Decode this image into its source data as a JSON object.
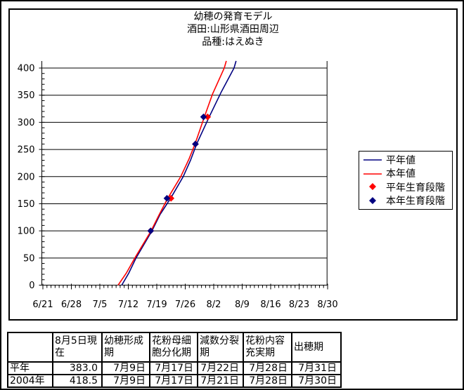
{
  "title": {
    "line1": "幼穂の発育モデル",
    "line2": "酒田:山形県酒田周辺",
    "line3": "品種:はえぬき"
  },
  "chart_data": {
    "type": "line",
    "title": "幼穂の発育モデル 酒田:山形県酒田周辺 品種:はえぬき",
    "x_axis": {
      "start_date": "6/21",
      "tick_labels": [
        "6/21",
        "6/28",
        "7/5",
        "7/12",
        "7/19",
        "7/26",
        "8/2",
        "8/9",
        "8/16",
        "8/23",
        "8/30"
      ],
      "major_tick_interval_days": 7,
      "minor_tick_interval_days": 1,
      "range_days": [
        0,
        70
      ]
    },
    "y_axis": {
      "min": 0,
      "max": 413,
      "major_interval": 50,
      "minor_interval": 10,
      "tick_labels": [
        "0",
        "50",
        "100",
        "150",
        "200",
        "250",
        "300",
        "350",
        "400"
      ]
    },
    "grid": "horizontal",
    "legend_position": "right",
    "series": [
      {
        "name": "平年値",
        "color": "#000080",
        "style": "line",
        "points": [
          [
            18.9,
            0
          ],
          [
            20.6,
            22
          ],
          [
            22.4,
            50
          ],
          [
            26.3,
            100
          ],
          [
            28.3,
            130
          ],
          [
            30.9,
            160
          ],
          [
            34.0,
            200
          ],
          [
            35.8,
            230
          ],
          [
            37.3,
            260
          ],
          [
            40.4,
            310
          ],
          [
            43.3,
            355
          ],
          [
            46.5,
            400
          ],
          [
            47.0,
            413
          ]
        ]
      },
      {
        "name": "本年値",
        "color": "#ff0000",
        "style": "line",
        "points": [
          [
            18.0,
            0
          ],
          [
            20.0,
            22
          ],
          [
            22.1,
            50
          ],
          [
            26.1,
            100
          ],
          [
            28.1,
            130
          ],
          [
            30.2,
            160
          ],
          [
            33.4,
            200
          ],
          [
            35.4,
            232
          ],
          [
            36.9,
            260
          ],
          [
            39.2,
            310
          ],
          [
            41.2,
            352
          ],
          [
            44.1,
            400
          ],
          [
            44.6,
            413
          ]
        ]
      }
    ],
    "markers": [
      {
        "name": "平年生育段階",
        "color": "#ff0000",
        "shape": "diamond",
        "points": [
          {
            "date": "7/17",
            "day": 26,
            "value": 100
          },
          {
            "date": "7/22",
            "day": 31,
            "value": 160
          },
          {
            "date": "7/28",
            "day": 37,
            "value": 260
          },
          {
            "date": "7/31",
            "day": 40,
            "value": 310
          }
        ]
      },
      {
        "name": "本年生育段階",
        "color": "#000080",
        "shape": "diamond",
        "points": [
          {
            "date": "7/17",
            "day": 26,
            "value": 100
          },
          {
            "date": "7/21",
            "day": 30,
            "value": 160
          },
          {
            "date": "7/28",
            "day": 37,
            "value": 260
          },
          {
            "date": "7/30",
            "day": 39,
            "value": 310
          }
        ]
      }
    ],
    "legend": [
      {
        "label": "平年値",
        "marker": "line",
        "color": "#000080"
      },
      {
        "label": "本年値",
        "marker": "line",
        "color": "#ff0000"
      },
      {
        "label": "平年生育段階",
        "marker": "diamond",
        "color": "#ff0000"
      },
      {
        "label": "本年生育段階",
        "marker": "diamond",
        "color": "#000080"
      }
    ]
  },
  "table": {
    "headers": [
      "",
      "8月5日現在",
      "幼穂形成期",
      "花粉母細胞分化期",
      "減数分裂期",
      "花粉内容充実期",
      "出穂期"
    ],
    "rows": [
      {
        "label": "平年",
        "cells": [
          "383.0",
          "7月9日",
          "7月17日",
          "7月22日",
          "7月28日",
          "7月31日"
        ]
      },
      {
        "label": "2004年",
        "cells": [
          "418.5",
          "7月9日",
          "7月17日",
          "7月21日",
          "7月28日",
          "7月30日"
        ]
      }
    ]
  },
  "colors": {
    "normal_line": "#000080",
    "current_line": "#ff0000",
    "axis": "#000000",
    "background": "#ffffff"
  }
}
